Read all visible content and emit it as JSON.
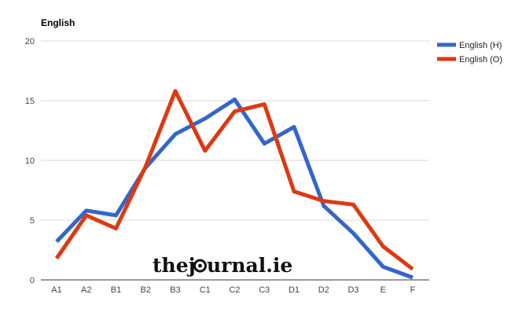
{
  "chart_data": {
    "type": "line",
    "title": "English",
    "xlabel": "",
    "ylabel": "",
    "categories": [
      "A1",
      "A2",
      "B1",
      "B2",
      "B3",
      "C1",
      "C2",
      "C3",
      "D1",
      "D2",
      "D3",
      "E",
      "F"
    ],
    "ylim": [
      0,
      20
    ],
    "yticks": [
      0,
      5,
      10,
      15,
      20
    ],
    "grid": true,
    "legend_position": "right",
    "series": [
      {
        "name": "English (H)",
        "color": "#3366cc",
        "values": [
          3.2,
          5.8,
          5.4,
          9.4,
          12.2,
          13.5,
          15.1,
          11.4,
          12.8,
          6.2,
          3.9,
          1.1,
          0.2
        ]
      },
      {
        "name": "English (O)",
        "color": "#dc3912",
        "values": [
          1.8,
          5.4,
          4.3,
          9.5,
          15.8,
          10.8,
          14.1,
          14.7,
          7.4,
          6.6,
          6.3,
          2.8,
          0.9
        ]
      }
    ]
  },
  "watermark": {
    "text_before": "thej",
    "text_after": "urnal.ie"
  }
}
